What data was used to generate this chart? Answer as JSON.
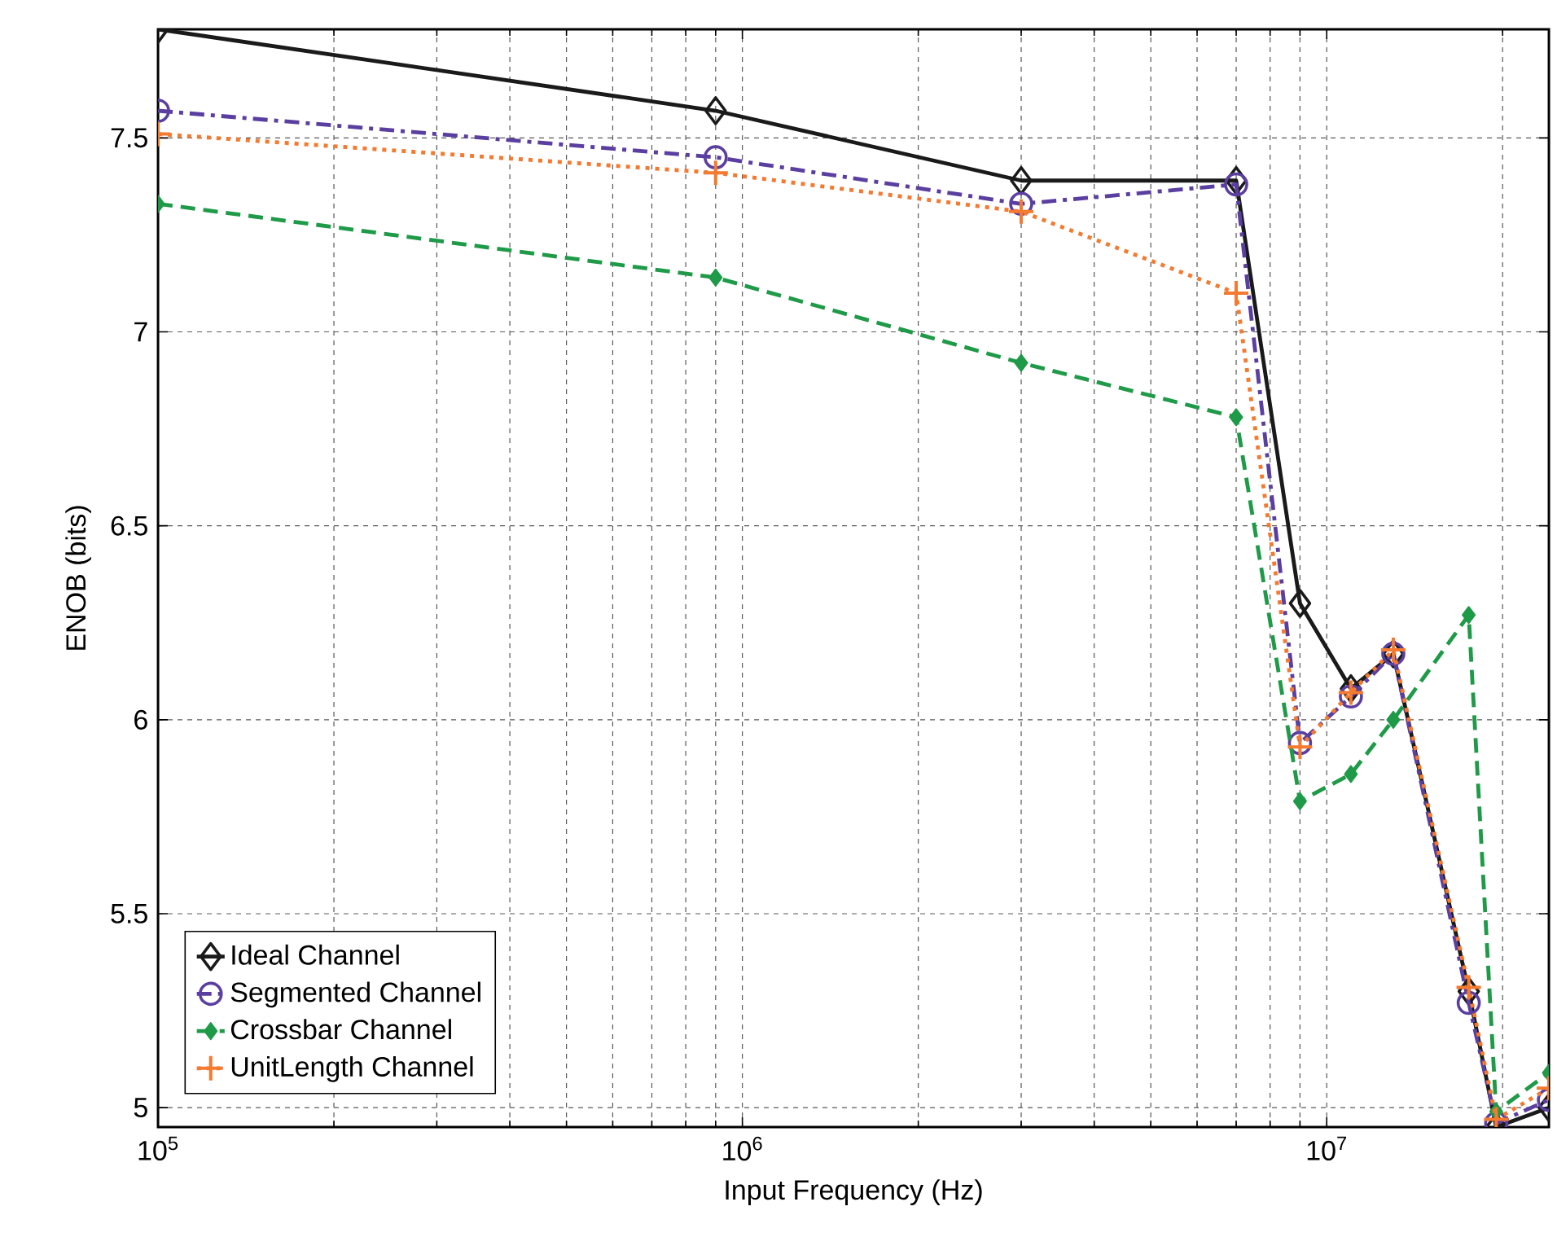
{
  "chart_data": {
    "type": "line",
    "xlabel": "Input Frequency (Hz)",
    "ylabel": "ENOB (bits)",
    "log": "x",
    "xlim": [
      100000,
      24000000
    ],
    "ylim": [
      4.95,
      7.78
    ],
    "xticks": [
      {
        "value": 100000,
        "label": "10$^{5}$"
      },
      {
        "value": 1000000,
        "label": "10$^{6}$"
      },
      {
        "value": 10000000,
        "label": "10$^{7}$"
      }
    ],
    "yticks": [
      5,
      5.5,
      6,
      6.5,
      7,
      7.5
    ],
    "grid": true,
    "legend": "bottom left",
    "x": [
      100000,
      900000,
      3000000,
      7000000,
      9000000,
      11000000,
      13000000,
      17500000,
      19500000,
      24000000
    ],
    "series": [
      {
        "name": "Ideal Channel",
        "color": "#1a1a1a",
        "marker": "diamond",
        "line_style": "solid",
        "values": [
          7.78,
          7.57,
          7.39,
          7.39,
          6.3,
          6.08,
          6.17,
          5.3,
          4.95,
          5.0
        ]
      },
      {
        "name": "Segmented Channel",
        "color": "#5b3fa0",
        "marker": "circle",
        "line_style": "dashdot",
        "values": [
          7.57,
          7.45,
          7.33,
          7.38,
          5.94,
          6.06,
          6.17,
          5.27,
          4.96,
          5.02
        ]
      },
      {
        "name": "Crossbar Channel",
        "color": "#1f9a48",
        "marker": "diamond_filled",
        "line_style": "dashed",
        "values": [
          7.33,
          7.14,
          6.92,
          6.78,
          5.79,
          5.86,
          6.0,
          6.27,
          4.99,
          5.09
        ]
      },
      {
        "name": "UnitLength Channel",
        "color": "#f47a30",
        "marker": "cross",
        "line_style": "dotted",
        "values": [
          7.51,
          7.41,
          7.31,
          7.1,
          5.93,
          6.07,
          6.18,
          5.31,
          4.97,
          5.05
        ]
      }
    ]
  }
}
